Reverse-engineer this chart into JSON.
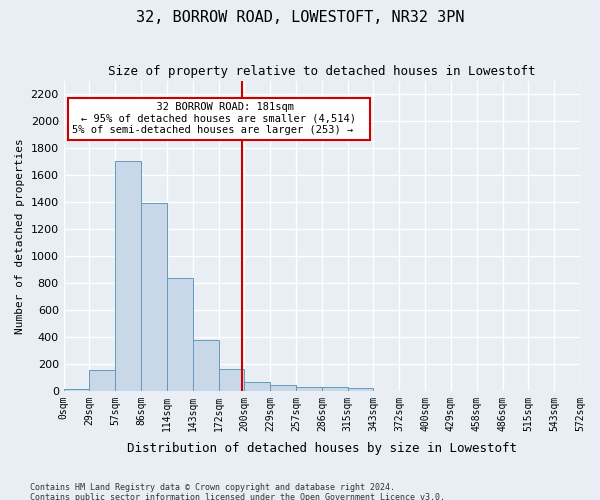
{
  "title": "32, BORROW ROAD, LOWESTOFT, NR32 3PN",
  "subtitle": "Size of property relative to detached houses in Lowestoft",
  "xlabel": "Distribution of detached houses by size in Lowestoft",
  "ylabel": "Number of detached properties",
  "footnote1": "Contains HM Land Registry data © Crown copyright and database right 2024.",
  "footnote2": "Contains public sector information licensed under the Open Government Licence v3.0.",
  "bin_labels": [
    "0sqm",
    "29sqm",
    "57sqm",
    "86sqm",
    "114sqm",
    "143sqm",
    "172sqm",
    "200sqm",
    "229sqm",
    "257sqm",
    "286sqm",
    "315sqm",
    "343sqm",
    "372sqm",
    "400sqm",
    "429sqm",
    "458sqm",
    "486sqm",
    "515sqm",
    "543sqm",
    "572sqm"
  ],
  "bar_values": [
    15,
    155,
    1700,
    1390,
    835,
    380,
    160,
    65,
    40,
    30,
    30,
    20,
    0,
    0,
    0,
    0,
    0,
    0,
    0,
    0
  ],
  "bar_color": "#c8d8e8",
  "bar_edge_color": "#6699bb",
  "background_color": "#e8eef4",
  "grid_color": "#ffffff",
  "vline_x": 6.9,
  "vline_color": "#cc0000",
  "ylim": [
    0,
    2300
  ],
  "annotation_title": "32 BORROW ROAD: 181sqm",
  "annotation_line1": "← 95% of detached houses are smaller (4,514)",
  "annotation_line2": "5% of semi-detached houses are larger (253) →",
  "annotation_box_color": "#ffffff",
  "annotation_border_color": "#cc0000"
}
